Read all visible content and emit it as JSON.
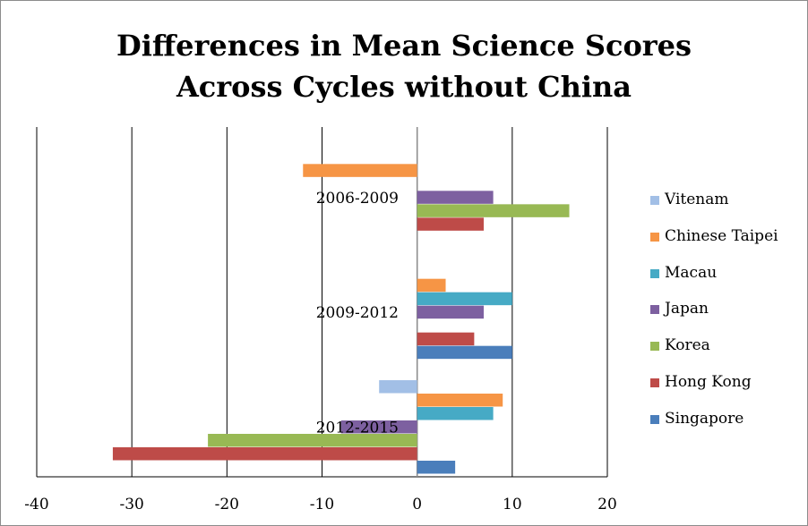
{
  "chart_data": {
    "type": "bar",
    "orientation": "horizontal",
    "title": "Differences in Mean Science Scores Across Cycles without China",
    "title_lines": [
      "Differences in Mean Science Scores",
      "Across Cycles without China"
    ],
    "categories": [
      "2012-2015",
      "2009-2012",
      "2006-2009"
    ],
    "xlim": [
      -40,
      20
    ],
    "xticks": [
      "-40",
      "-30",
      "-20",
      "-10",
      "0",
      "10",
      "20"
    ],
    "grid": true,
    "legend_position": "right",
    "series": [
      {
        "name": "Singapore",
        "color": "#4a7ebb",
        "values": [
          4,
          10,
          null
        ]
      },
      {
        "name": "Hong Kong",
        "color": "#be4b48",
        "values": [
          -32,
          6,
          7
        ]
      },
      {
        "name": "Korea",
        "color": "#98b954",
        "values": [
          -22,
          null,
          16
        ]
      },
      {
        "name": "Japan",
        "color": "#7d60a0",
        "values": [
          -8,
          7,
          8
        ]
      },
      {
        "name": "Macau",
        "color": "#46aac5",
        "values": [
          8,
          10,
          null
        ]
      },
      {
        "name": "Chinese Taipei",
        "color": "#f69545",
        "values": [
          9,
          3,
          -12
        ]
      },
      {
        "name": "Vitenam",
        "color": "#a2bfe6",
        "values": [
          -4,
          null,
          null
        ]
      }
    ]
  }
}
